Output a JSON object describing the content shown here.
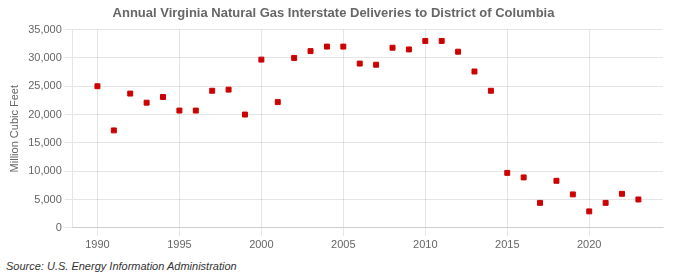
{
  "chart_data": {
    "type": "scatter",
    "title": "Annual Virginia Natural Gas Interstate Deliveries to District of Columbia",
    "y_label": "Million Cubic Feet",
    "source": "Source: U.S. Energy Information Administration",
    "x": [
      1990,
      1991,
      1992,
      1993,
      1994,
      1995,
      1996,
      1997,
      1998,
      1999,
      2000,
      2001,
      2002,
      2003,
      2004,
      2005,
      2006,
      2007,
      2008,
      2009,
      2010,
      2011,
      2012,
      2013,
      2014,
      2015,
      2016,
      2017,
      2018,
      2019,
      2020,
      2021,
      2022,
      2023
    ],
    "values": [
      25000,
      17200,
      23700,
      22100,
      23100,
      20700,
      20700,
      24200,
      24400,
      20000,
      29700,
      22200,
      30000,
      31200,
      32000,
      32000,
      29000,
      28800,
      31800,
      31500,
      33000,
      33000,
      31100,
      27600,
      24200,
      9700,
      8900,
      4400,
      8300,
      5900,
      2900,
      4400,
      6000,
      5000
    ],
    "color": "#cc0000",
    "marker": "square",
    "xlim": [
      1988.5,
      2024.5
    ],
    "xticks": [
      1990,
      1995,
      2000,
      2005,
      2010,
      2015,
      2020
    ],
    "ylim": [
      0,
      35000
    ],
    "yticks": [
      0,
      {
        "value": 5000,
        "label": "5,000"
      },
      {
        "value": 10000,
        "label": "10,000"
      },
      {
        "value": 15000,
        "label": "15,000"
      },
      {
        "value": 20000,
        "label": "20,000"
      },
      {
        "value": 25000,
        "label": "25,000"
      },
      {
        "value": 30000,
        "label": "30,000"
      },
      {
        "value": 35000,
        "label": "35,000"
      }
    ],
    "grid": true
  }
}
